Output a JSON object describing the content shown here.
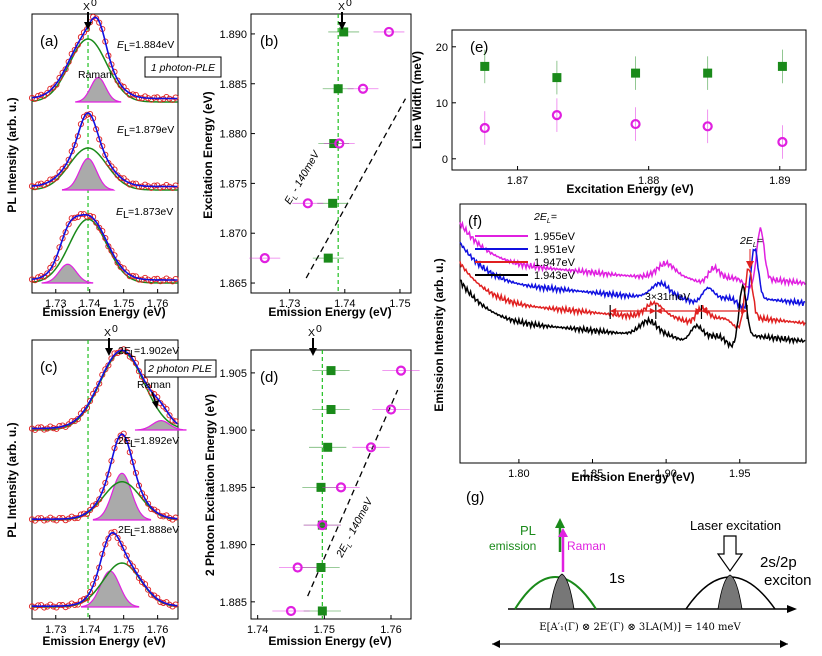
{
  "colors": {
    "green": "#1a8a1a",
    "magenta": "#e020e0",
    "red": "#e02020",
    "blue": "#1010e0",
    "black": "#000000",
    "vline": "#20c020"
  },
  "panels": {
    "a": "(a)",
    "b": "(b)",
    "c": "(c)",
    "d": "(d)",
    "e": "(e)",
    "f": "(f)",
    "g": "(g)"
  },
  "x0": "X",
  "x0sup": "0",
  "panel_a": {
    "ylabel": "PL Intensity (arb. u.)",
    "xlabel": "Emission Energy (eV)",
    "xticks": [
      "1.73",
      "1.74",
      "1.75",
      "1.76"
    ],
    "label_el": "E",
    "levels": [
      "=1.884eV",
      "=1.879eV",
      "=1.873eV"
    ],
    "raman": "Raman",
    "box": "1 photon-PLE"
  },
  "panel_c": {
    "ylabel": "PL Intensity (arb. u.)",
    "xlabel": "Emission Energy (eV)",
    "xticks": [
      "1.73",
      "1.74",
      "1.75",
      "1.76"
    ],
    "levels": [
      "2E",
      "=1.902eV",
      "=1.892eV",
      "=1.888eV"
    ],
    "raman": "Raman",
    "box": "2 photon PLE"
  },
  "chart_data": [
    {
      "id": "b",
      "type": "scatter",
      "title": "",
      "xlabel": "Emission Energy (eV)",
      "ylabel": "Excitation Energy (eV)",
      "xlim": [
        1.723,
        1.752
      ],
      "ylim": [
        1.864,
        1.892
      ],
      "xticks": [
        "1.73",
        "1.74",
        "1.75"
      ],
      "yticks": [
        "1.865",
        "1.870",
        "1.875",
        "1.880",
        "1.885",
        "1.890"
      ],
      "series": [
        {
          "name": "green squares",
          "x": [
            1.7398,
            1.7388,
            1.738,
            1.7378,
            1.737
          ],
          "y": [
            1.8902,
            1.8845,
            1.879,
            1.873,
            1.8675
          ]
        },
        {
          "name": "magenta circles",
          "x": [
            1.748,
            1.7433,
            1.739,
            1.7333,
            1.7255
          ],
          "y": [
            1.8902,
            1.8845,
            1.879,
            1.873,
            1.8675
          ]
        }
      ],
      "vline": 1.7388,
      "line_label": "E",
      "line_label_sub": "L",
      "line_label_tail": " - 140meV"
    },
    {
      "id": "d",
      "type": "scatter",
      "title": "",
      "xlabel": "Emission Energy (eV)",
      "ylabel": "2 Photon Excitation Energy (eV)",
      "xlim": [
        1.739,
        1.763
      ],
      "ylim": [
        1.8835,
        1.907
      ],
      "xticks": [
        "1.74",
        "1.75",
        "1.76"
      ],
      "yticks": [
        "1.885",
        "1.890",
        "1.895",
        "1.900",
        "1.905"
      ],
      "series": [
        {
          "name": "green squares",
          "x": [
            1.751,
            1.751,
            1.7505,
            1.7495,
            1.7497,
            1.7495,
            1.7497
          ],
          "y": [
            1.9052,
            1.9018,
            1.8985,
            1.895,
            1.8917,
            1.888,
            1.8842
          ]
        },
        {
          "name": "magenta circles",
          "x": [
            1.7615,
            1.76,
            1.757,
            1.7525,
            1.7497,
            1.746,
            1.745
          ],
          "y": [
            1.9052,
            1.9018,
            1.8985,
            1.895,
            1.8917,
            1.888,
            1.8842
          ]
        }
      ],
      "vline": 1.7497,
      "line_label": "2E",
      "line_label_sub": "L",
      "line_label_tail": " - 140meV"
    },
    {
      "id": "e",
      "type": "scatter",
      "xlabel": "Excitation Energy (eV)",
      "ylabel": "Line Width (meV)",
      "xlim": [
        1.865,
        1.892
      ],
      "ylim": [
        -2,
        23
      ],
      "xticks": [
        "1.87",
        "1.88",
        "1.89"
      ],
      "yticks": [
        "0",
        "10",
        "20"
      ],
      "series": [
        {
          "name": "green squares",
          "x": [
            1.8675,
            1.873,
            1.879,
            1.8845,
            1.8902
          ],
          "y": [
            16.5,
            14.5,
            15.3,
            15.3,
            16.5
          ]
        },
        {
          "name": "magenta circles",
          "x": [
            1.8675,
            1.873,
            1.879,
            1.8845,
            1.8902
          ],
          "y": [
            5.5,
            7.8,
            6.2,
            5.8,
            3
          ]
        }
      ]
    },
    {
      "id": "f",
      "type": "line",
      "xlabel": "Emission Energy (eV)",
      "ylabel": "Emission Intensity (arb. u.)",
      "xlim": [
        1.76,
        1.995
      ],
      "xticks": [
        "1.80",
        "1.85",
        "1.90",
        "1.95"
      ],
      "legend_title": "2E",
      "legend_title_tail": "=",
      "series": [
        {
          "name": "1.955eV"
        },
        {
          "name": "1.951eV"
        },
        {
          "name": "1.947eV"
        },
        {
          "name": "1.943eV"
        }
      ],
      "annotation": "3×31meV",
      "peak_label": "2E",
      "peak_label_tail": "="
    }
  ],
  "panel_g": {
    "pl": "PL",
    "emission": "emission",
    "raman": "Raman",
    "s1": "1s",
    "laser": "Laser excitation",
    "s2": "2s/2p",
    "exciton": "exciton",
    "equation": "E[A′₁(Γ) ⊗ 2E′(Γ) ⊗ 3LA(M)] = 140 meV"
  }
}
